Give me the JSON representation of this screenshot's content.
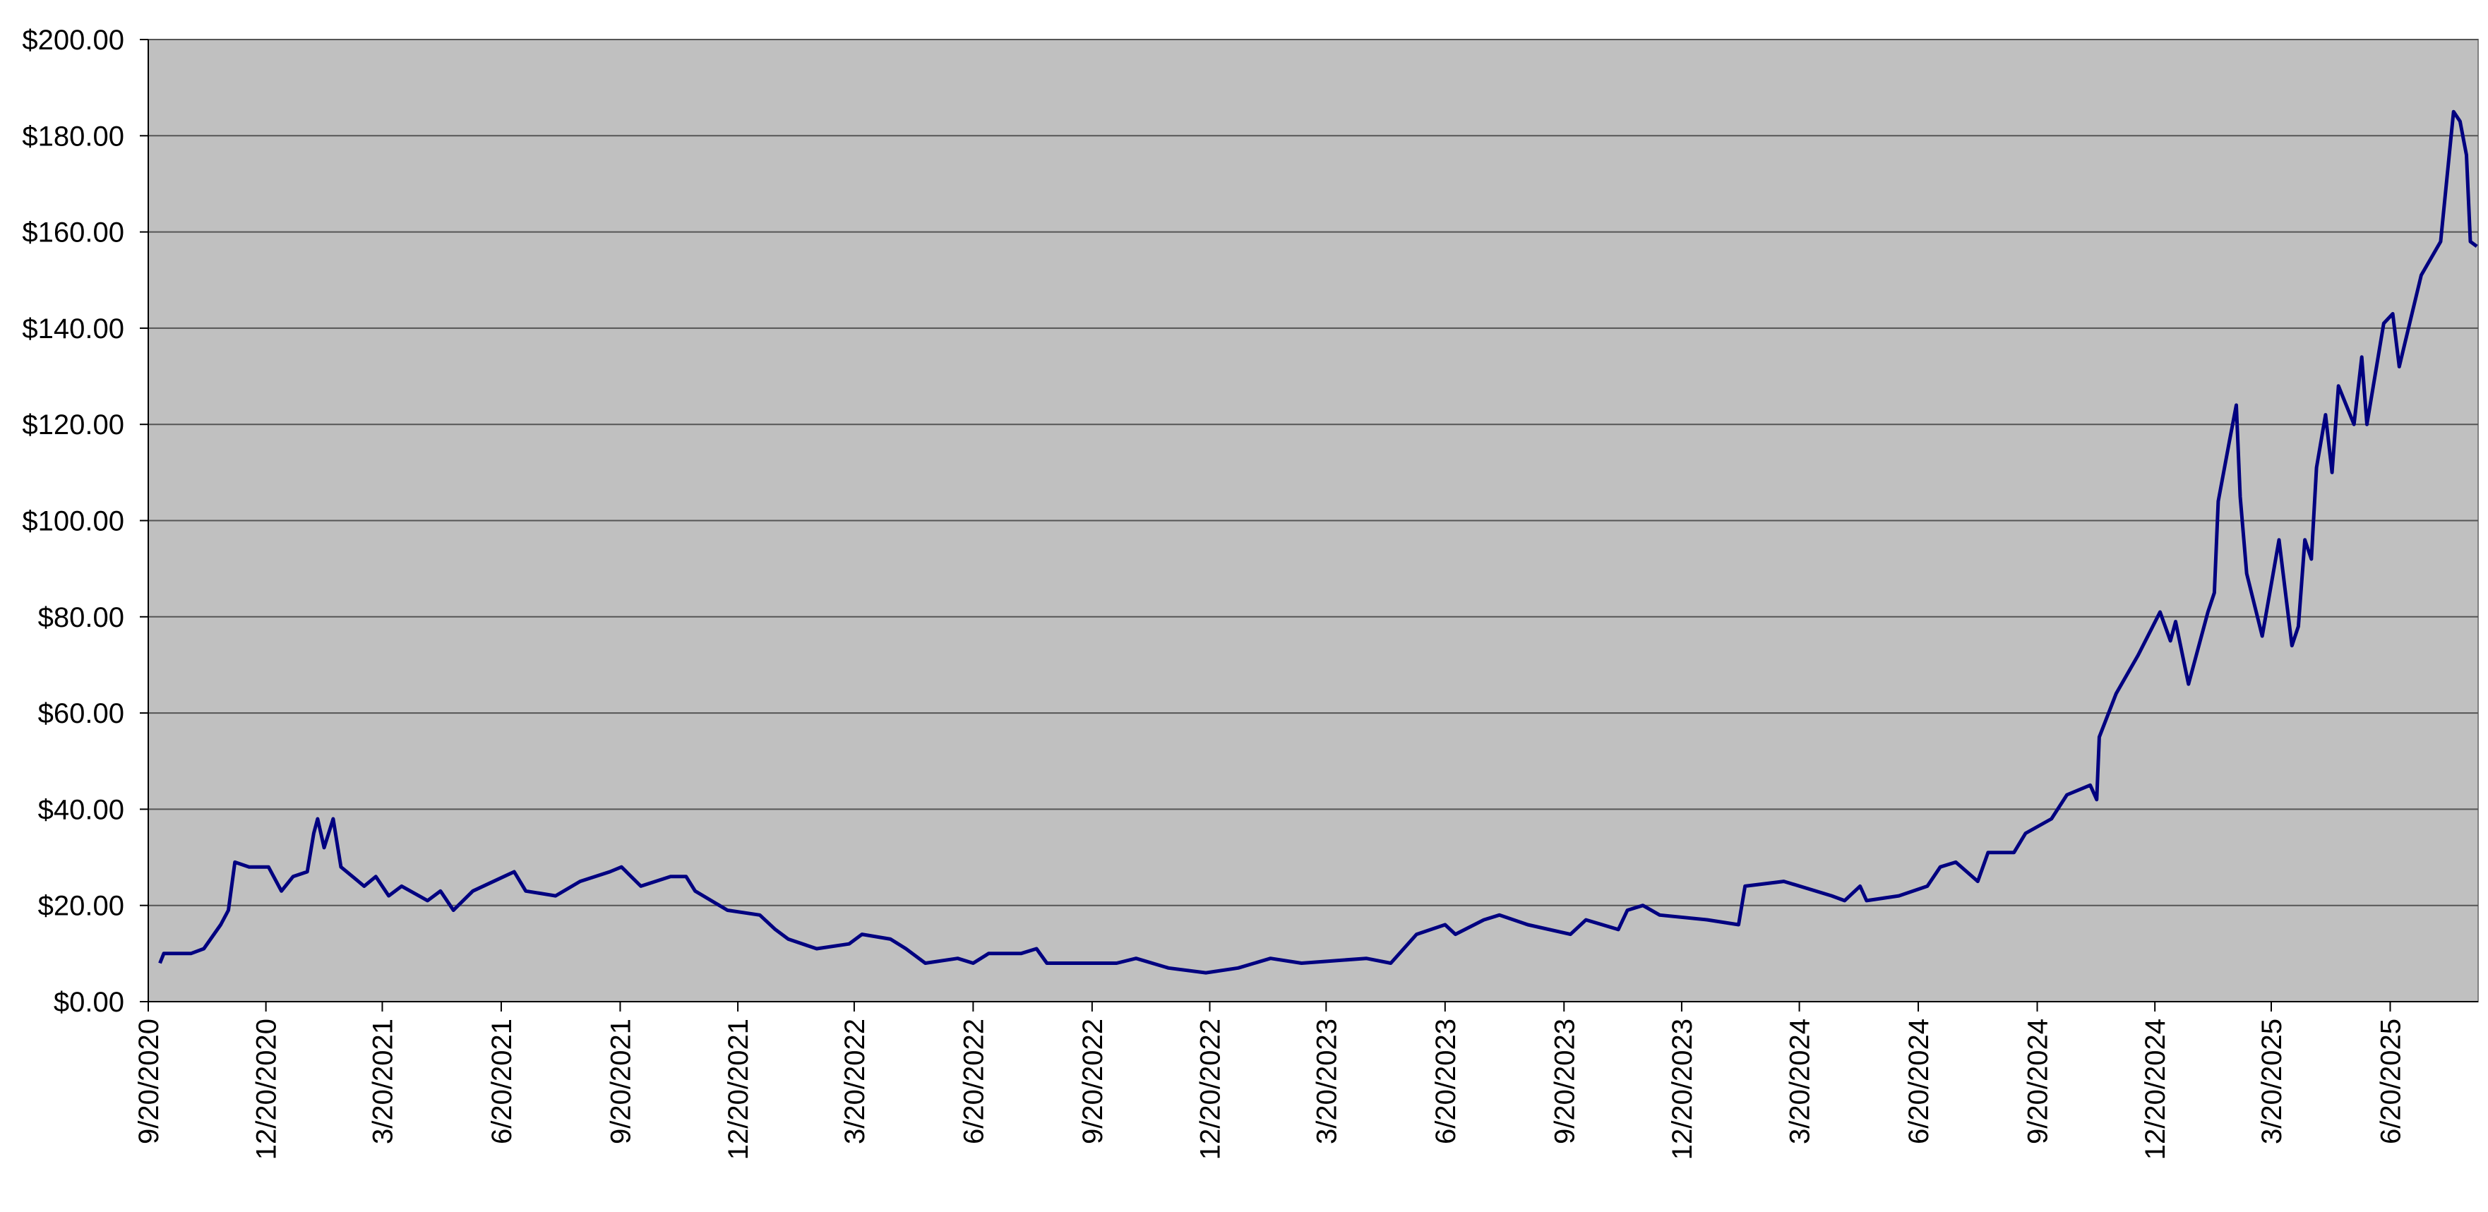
{
  "chart_data": {
    "type": "line",
    "color": "#000080",
    "background": "#c0c0c0",
    "grid": true,
    "xlim": [
      "9/20/2020",
      "8/27/2025"
    ],
    "xticks": [
      "9/20/2020",
      "12/20/2020",
      "3/20/2021",
      "6/20/2021",
      "9/20/2021",
      "12/20/2021",
      "3/20/2022",
      "6/20/2022",
      "9/20/2022",
      "12/20/2022",
      "3/20/2023",
      "6/20/2023",
      "9/20/2023",
      "12/20/2023",
      "3/20/2024",
      "6/20/2024",
      "9/20/2024",
      "12/20/2024",
      "3/20/2025",
      "6/20/2025"
    ],
    "ylim": [
      0,
      200
    ],
    "yticks": [
      {
        "value": 0,
        "label": "$0.00"
      },
      {
        "value": 20,
        "label": "$20.00"
      },
      {
        "value": 40,
        "label": "$40.00"
      },
      {
        "value": 60,
        "label": "$60.00"
      },
      {
        "value": 80,
        "label": "$80.00"
      },
      {
        "value": 100,
        "label": "$100.00"
      },
      {
        "value": 120,
        "label": "$120.00"
      },
      {
        "value": 140,
        "label": "$140.00"
      },
      {
        "value": 160,
        "label": "$160.00"
      },
      {
        "value": 180,
        "label": "$180.00"
      },
      {
        "value": 200,
        "label": "$200.00"
      }
    ],
    "x": [
      "9/29/2020",
      "10/2/2020",
      "10/23/2020",
      "11/2/2020",
      "11/15/2020",
      "11/21/2020",
      "11/26/2020",
      "12/7/2020",
      "12/22/2020",
      "1/1/2021",
      "1/10/2021",
      "1/21/2021",
      "1/26/2021",
      "1/29/2021",
      "2/3/2021",
      "2/10/2021",
      "2/16/2021",
      "3/6/2021",
      "3/15/2021",
      "3/25/2021",
      "4/4/2021",
      "4/24/2021",
      "5/4/2021",
      "5/14/2021",
      "5/29/2021",
      "6/22/2021",
      "6/30/2021",
      "7/9/2021",
      "8/1/2021",
      "8/20/2021",
      "9/12/2021",
      "9/21/2021",
      "10/6/2021",
      "10/29/2021",
      "11/10/2021",
      "11/17/2021",
      "12/12/2021",
      "1/6/2022",
      "1/18/2022",
      "1/28/2022",
      "2/19/2022",
      "3/16/2022",
      "3/26/2022",
      "4/17/2022",
      "4/29/2022",
      "5/14/2022",
      "6/8/2022",
      "6/20/2022",
      "7/2/2022",
      "7/27/2022",
      "8/8/2022",
      "8/16/2022",
      "9/9/2022",
      "10/9/2022",
      "10/24/2022",
      "11/18/2022",
      "12/17/2022",
      "1/11/2023",
      "2/5/2023",
      "3/1/2023",
      "4/20/2023",
      "5/9/2023",
      "5/19/2023",
      "5/29/2023",
      "6/20/2023",
      "6/28/2023",
      "7/20/2023",
      "8/1/2023",
      "8/23/2023",
      "9/25/2023",
      "10/7/2023",
      "11/1/2023",
      "11/8/2023",
      "11/20/2023",
      "12/3/2023",
      "1/9/2024",
      "2/2/2024",
      "2/7/2024",
      "3/8/2024",
      "4/14/2024",
      "4/24/2024",
      "5/6/2024",
      "5/11/2024",
      "6/5/2024",
      "6/27/2024",
      "7/7/2024",
      "7/19/2024",
      "8/5/2024",
      "8/13/2024",
      "9/2/2024",
      "9/11/2024",
      "10/1/2024",
      "10/13/2024",
      "10/31/2024",
      "11/5/2024",
      "11/7/2024",
      "11/20/2024",
      "12/7/2024",
      "12/24/2024",
      "1/1/2025",
      "1/5/2025",
      "1/15/2025",
      "1/30/2025",
      "2/4/2025",
      "2/7/2025",
      "2/16/2025",
      "2/21/2025",
      "2/24/2025",
      "3/1/2025",
      "3/13/2025",
      "3/26/2025",
      "4/5/2025",
      "4/10/2025",
      "4/15/2025",
      "4/20/2025",
      "4/24/2025",
      "5/1/2025",
      "5/6/2025",
      "5/11/2025",
      "5/23/2025",
      "5/29/2025",
      "6/2/2025",
      "6/15/2025",
      "6/22/2025",
      "6/27/2025",
      "7/14/2025",
      "7/29/2025",
      "8/8/2025",
      "8/13/2025",
      "8/18/2025",
      "8/21/2025",
      "8/26/2025"
    ],
    "values": [
      8,
      10,
      10,
      11,
      16,
      19,
      29,
      28,
      28,
      23,
      26,
      27,
      35,
      38,
      32,
      38,
      28,
      24,
      26,
      22,
      24,
      21,
      23,
      19,
      23,
      26,
      27,
      23,
      22,
      25,
      27,
      28,
      24,
      26,
      26,
      23,
      19,
      18,
      15,
      13,
      11,
      12,
      14,
      13,
      11,
      8,
      9,
      8,
      10,
      10,
      11,
      8,
      8,
      8,
      9,
      7,
      6,
      7,
      9,
      8,
      9,
      8,
      11,
      14,
      16,
      14,
      17,
      18,
      16,
      14,
      17,
      15,
      19,
      20,
      18,
      17,
      16,
      24,
      25,
      22,
      21,
      24,
      21,
      22,
      24,
      28,
      29,
      25,
      31,
      31,
      35,
      38,
      43,
      45,
      42,
      55,
      64,
      72,
      81,
      75,
      79,
      66,
      81,
      85,
      104,
      117,
      124,
      105,
      89,
      76,
      96,
      74,
      78,
      96,
      92,
      111,
      122,
      110,
      128,
      120,
      134,
      120,
      141,
      143,
      132,
      151,
      158,
      185,
      183,
      176,
      158,
      157
    ]
  }
}
